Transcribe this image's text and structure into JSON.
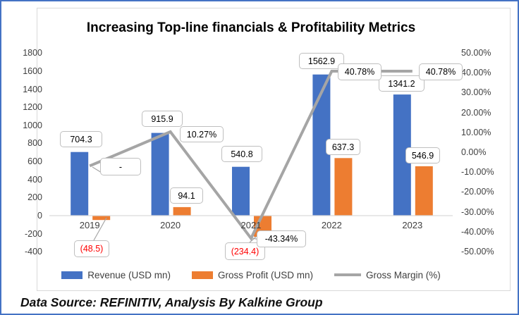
{
  "footer": "Data Source: REFINITIV, Analysis By Kalkine Group",
  "chart_data": {
    "type": "bar+line combo",
    "title": "Increasing Top-line financials & Profitability Metrics",
    "categories": [
      "2019",
      "2020",
      "2021",
      "2022",
      "2023"
    ],
    "series": [
      {
        "name": "Revenue (USD mn)",
        "chart_type": "bar",
        "axis": "left",
        "color": "#4472C4",
        "values": [
          704.3,
          915.9,
          540.8,
          1562.9,
          1341.2
        ],
        "data_labels": [
          "704.3",
          "915.9",
          "540.8",
          "1562.9",
          "1341.2"
        ],
        "label_colors": [
          "#000000",
          "#000000",
          "#000000",
          "#000000",
          "#000000"
        ]
      },
      {
        "name": "Gross Profit (USD mn)",
        "chart_type": "bar",
        "axis": "left",
        "color": "#ED7D31",
        "values": [
          -48.5,
          94.1,
          -234.4,
          637.3,
          546.9
        ],
        "data_labels": [
          "(48.5)",
          "94.1",
          "(234.4)",
          "637.3",
          "546.9"
        ],
        "label_colors": [
          "#FF0000",
          "#000000",
          "#FF0000",
          "#000000",
          "#000000"
        ]
      },
      {
        "name": "Gross Margin (%)",
        "chart_type": "line",
        "axis": "right",
        "color": "#A5A5A5",
        "values": [
          -6.89,
          10.27,
          -43.34,
          40.78,
          40.78
        ],
        "data_labels": [
          "-",
          "10.27%",
          "-43.34%",
          "40.78%",
          "40.78%"
        ],
        "label_colors": [
          "#000000",
          "#000000",
          "#000000",
          "#000000",
          "#000000"
        ]
      }
    ],
    "left_axis": {
      "range": [
        -400,
        1800
      ],
      "step": 200,
      "ticks": [
        "1800",
        "1600",
        "1400",
        "1200",
        "1000",
        "800",
        "600",
        "400",
        "200",
        "0",
        "-200",
        "-400"
      ]
    },
    "right_axis": {
      "range": [
        -50,
        50
      ],
      "step": 10,
      "ticks": [
        "50.00%",
        "40.00%",
        "30.00%",
        "20.00%",
        "10.00%",
        "0.00%",
        "-10.00%",
        "-20.00%",
        "-30.00%",
        "-40.00%",
        "-50.00%"
      ]
    },
    "grid": false,
    "legend_position": "bottom",
    "colors": {
      "frame": "#4472C4",
      "chart_border": "#D9D9D9",
      "axis_line": "#D9D9D9",
      "axis_text": "#404040",
      "callout_border": "#BFBFBF",
      "negative_label": "#FF0000"
    }
  }
}
